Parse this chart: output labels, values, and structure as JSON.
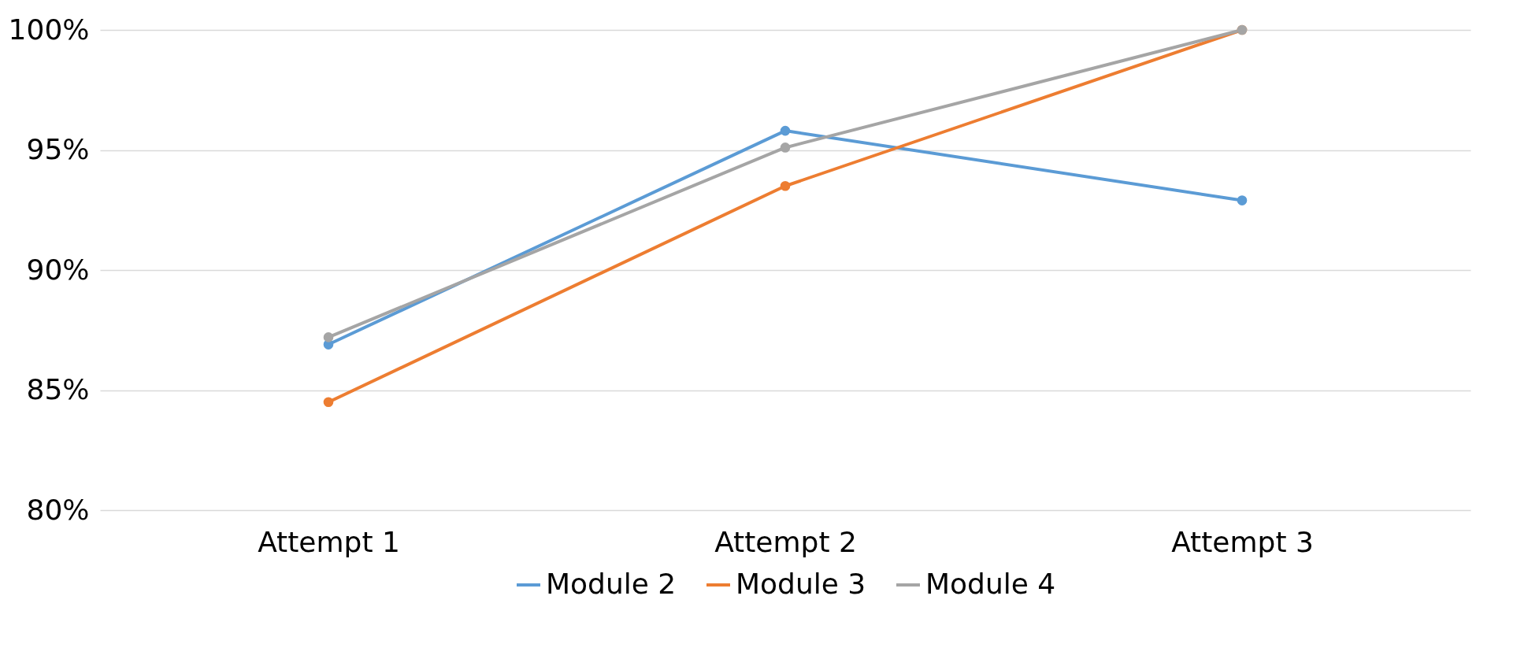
{
  "chart_data": {
    "type": "line",
    "categories": [
      "Attempt 1",
      "Attempt 2",
      "Attempt 3"
    ],
    "series": [
      {
        "name": "Module 2",
        "color": "#5b9bd5",
        "values": [
          86.9,
          95.8,
          92.9
        ]
      },
      {
        "name": "Module 3",
        "color": "#ed7d31",
        "values": [
          84.5,
          93.5,
          100
        ]
      },
      {
        "name": "Module 4",
        "color": "#a5a5a5",
        "values": [
          87.2,
          95.1,
          100
        ]
      }
    ],
    "ylim": [
      80,
      100
    ],
    "yticks": [
      {
        "value": 80,
        "label": "80%"
      },
      {
        "value": 85,
        "label": "85%"
      },
      {
        "value": 90,
        "label": "90%"
      },
      {
        "value": 95,
        "label": "95%"
      },
      {
        "value": 100,
        "label": "100%"
      }
    ],
    "grid": "y",
    "legend": "bottom",
    "marker": "circle",
    "line_style": "solid"
  }
}
